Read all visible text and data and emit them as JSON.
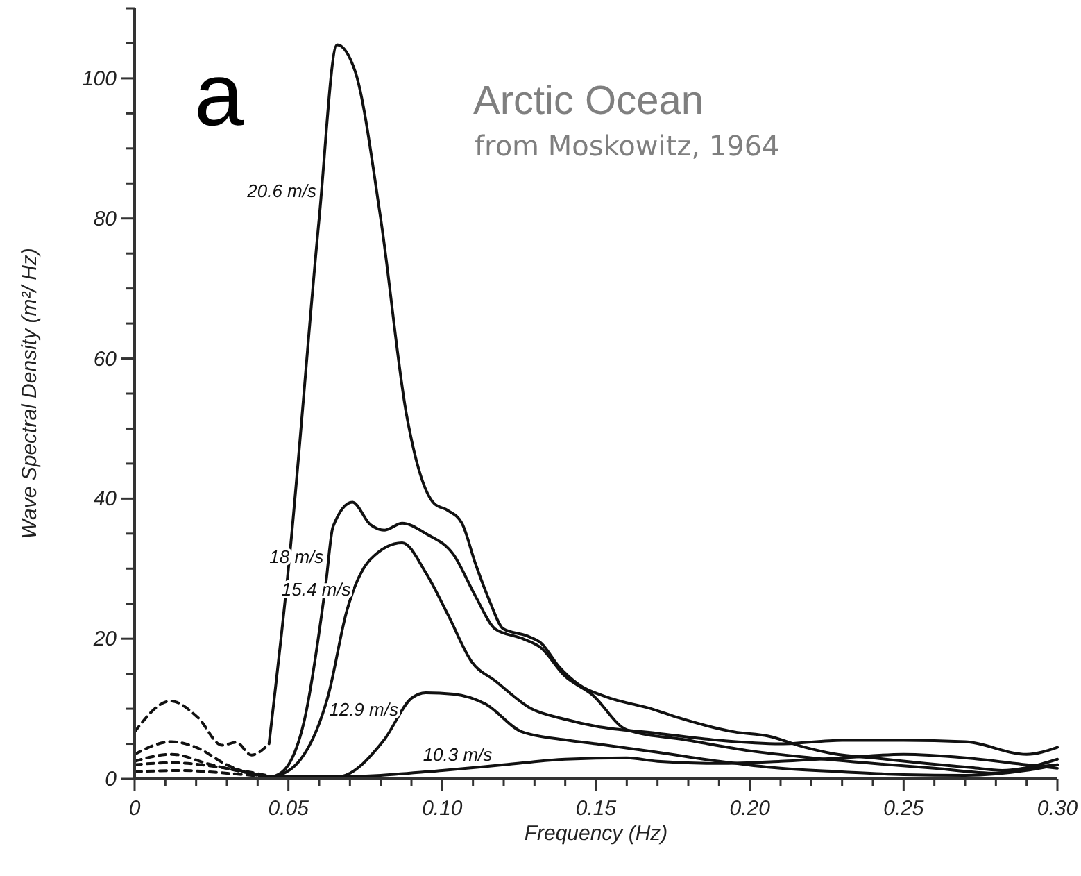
{
  "chart_data": {
    "type": "line",
    "title": "Arctic Ocean",
    "subtitle": "from Moskowitz, 1964",
    "annotations": [
      "a"
    ],
    "xlabel": "Frequency (Hz)",
    "ylabel": "Wave Spectral Density (m²/ Hz)",
    "xlim": [
      0,
      0.3
    ],
    "ylim": [
      0,
      110
    ],
    "xticks": [
      0,
      {
        "value": 0.01,
        "label": null
      },
      {
        "value": 0.02,
        "label": null
      },
      {
        "value": 0.03,
        "label": null
      },
      {
        "value": 0.04,
        "label": null
      },
      0.05,
      {
        "value": 0.06,
        "label": null
      },
      {
        "value": 0.07,
        "label": null
      },
      {
        "value": 0.08,
        "label": null
      },
      {
        "value": 0.09,
        "label": null
      },
      {
        "value": 0.1,
        "label": "0.10"
      },
      {
        "value": 0.11,
        "label": null
      },
      {
        "value": 0.12,
        "label": null
      },
      {
        "value": 0.13,
        "label": null
      },
      {
        "value": 0.14,
        "label": null
      },
      0.15,
      {
        "value": 0.16,
        "label": null
      },
      {
        "value": 0.17,
        "label": null
      },
      {
        "value": 0.18,
        "label": null
      },
      {
        "value": 0.19,
        "label": null
      },
      {
        "value": 0.2,
        "label": "0.20"
      },
      {
        "value": 0.21,
        "label": null
      },
      {
        "value": 0.22,
        "label": null
      },
      {
        "value": 0.23,
        "label": null
      },
      {
        "value": 0.24,
        "label": null
      },
      0.25,
      {
        "value": 0.26,
        "label": null
      },
      {
        "value": 0.27,
        "label": null
      },
      {
        "value": 0.28,
        "label": null
      },
      {
        "value": 0.29,
        "label": null
      },
      {
        "value": 0.3,
        "label": "0.30"
      }
    ],
    "yticks": [
      0,
      {
        "value": 5,
        "label": null
      },
      {
        "value": 10,
        "label": null
      },
      {
        "value": 15,
        "label": null
      },
      20,
      {
        "value": 25,
        "label": null
      },
      {
        "value": 30,
        "label": null
      },
      {
        "value": 35,
        "label": null
      },
      40,
      {
        "value": 45,
        "label": null
      },
      {
        "value": 50,
        "label": null
      },
      {
        "value": 55,
        "label": null
      },
      60,
      {
        "value": 65,
        "label": null
      },
      {
        "value": 70,
        "label": null
      },
      {
        "value": 75,
        "label": null
      },
      80,
      {
        "value": 85,
        "label": null
      },
      {
        "value": 90,
        "label": null
      },
      {
        "value": 95,
        "label": null
      },
      100,
      {
        "value": 105,
        "label": null
      },
      {
        "value": 110,
        "label": null
      }
    ],
    "grid": false,
    "legend": false,
    "marker": "none",
    "series": [
      {
        "name": "20.6 m/s",
        "color": "#111111",
        "line_style": "solid",
        "x": [
          0.0437,
          0.05,
          0.06,
          0.0658,
          0.0717,
          0.08,
          0.0884,
          0.0974,
          0.1019,
          0.1064,
          0.1109,
          0.1154,
          0.1199,
          0.1276,
          0.1321,
          0.138,
          0.1443,
          0.1533,
          0.168,
          0.177,
          0.195,
          0.206,
          0.218,
          0.227,
          0.242,
          0.257,
          0.272,
          0.282,
          0.29,
          0.3
        ],
        "values": [
          5,
          30,
          80,
          104.8,
          101,
          80,
          52,
          39.3,
          38.3,
          36.5,
          30.6,
          25.4,
          21.4,
          20.4,
          19.4,
          16,
          13.5,
          11.7,
          10,
          8.7,
          6.7,
          6.1,
          4.5,
          3.6,
          2.9,
          2.2,
          1.6,
          1.2,
          1.6,
          2.8
        ]
      },
      {
        "name": "18 m/s",
        "color": "#111111",
        "line_style": "solid",
        "x": [
          0.045,
          0.05,
          0.055,
          0.0622,
          0.0645,
          0.0708,
          0.0766,
          0.0812,
          0.087,
          0.0947,
          0.1037,
          0.1109,
          0.1172,
          0.1262,
          0.1321,
          0.1398,
          0.1488,
          0.16,
          0.18,
          0.2,
          0.22,
          0.24,
          0.26,
          0.28,
          0.29,
          0.3
        ],
        "values": [
          0.3,
          2,
          8,
          28,
          36,
          39.5,
          36.3,
          35.5,
          36.5,
          35,
          32,
          26,
          21.4,
          20,
          18.7,
          14.7,
          12,
          7,
          5.5,
          4,
          3,
          2.2,
          1.5,
          0.8,
          1.5,
          2
        ]
      },
      {
        "name": "15.4 m/s",
        "color": "#111111",
        "line_style": "solid",
        "x": [
          0.045,
          0.054,
          0.063,
          0.069,
          0.0766,
          0.087,
          0.0947,
          0.1019,
          0.1096,
          0.1172,
          0.129,
          0.14,
          0.15,
          0.17,
          0.19,
          0.21,
          0.23,
          0.25,
          0.27,
          0.29,
          0.3
        ],
        "values": [
          0.2,
          2.8,
          12,
          24,
          31.3,
          33.7,
          29.4,
          23.4,
          16.7,
          14,
          10,
          8.5,
          7.5,
          6.5,
          5.5,
          5,
          5.5,
          5.5,
          5.3,
          3.5,
          4.5
        ]
      },
      {
        "name": "12.9 m/s",
        "color": "#111111",
        "line_style": "solid",
        "x": [
          0.045,
          0.066,
          0.081,
          0.09,
          0.0947,
          0.1037,
          0.114,
          0.126,
          0.141,
          0.15,
          0.17,
          0.19,
          0.21,
          0.23,
          0.25,
          0.27,
          0.29,
          0.3
        ],
        "values": [
          0.3,
          0.3,
          5.5,
          11.5,
          12.3,
          12.1,
          10.7,
          6.7,
          5.5,
          5,
          3.8,
          2.5,
          1.5,
          1,
          0.6,
          0.5,
          1.2,
          2
        ]
      },
      {
        "name": "10.3 m/s",
        "color": "#111111",
        "line_style": "solid",
        "x": [
          0.045,
          0.06,
          0.08,
          0.1,
          0.12,
          0.14,
          0.16,
          0.17,
          0.19,
          0.21,
          0.23,
          0.25,
          0.27,
          0.29,
          0.3
        ],
        "values": [
          0.2,
          0.2,
          0.5,
          1.2,
          2,
          2.8,
          3,
          2.5,
          2.2,
          2.5,
          3,
          3.5,
          3,
          2,
          1.5
        ]
      },
      {
        "color": "#111111",
        "line_style": "dashed",
        "x": [
          0,
          0.0117,
          0.0207,
          0.0284,
          0.033,
          0.038,
          0.0437
        ],
        "values": [
          6.7,
          11.1,
          8.7,
          4.8,
          5.2,
          3.4,
          5
        ]
      },
      {
        "color": "#111111",
        "line_style": "dashed",
        "x": [
          0,
          0.012,
          0.02,
          0.03,
          0.04,
          0.045
        ],
        "values": [
          3.5,
          5.3,
          4.5,
          2,
          0.5,
          0.3
        ]
      },
      {
        "color": "#111111",
        "line_style": "dashed",
        "x": [
          0,
          0.012,
          0.025,
          0.035,
          0.045
        ],
        "values": [
          2.5,
          3.5,
          2,
          1,
          0.2
        ]
      },
      {
        "color": "#111111",
        "line_style": "dashed",
        "x": [
          0,
          0.012,
          0.03,
          0.045
        ],
        "values": [
          2,
          2.3,
          1.5,
          0.3
        ]
      },
      {
        "color": "#111111",
        "line_style": "dashed",
        "x": [
          0,
          0.015,
          0.03,
          0.045
        ],
        "values": [
          1,
          1.2,
          0.8,
          0.2
        ]
      }
    ]
  }
}
